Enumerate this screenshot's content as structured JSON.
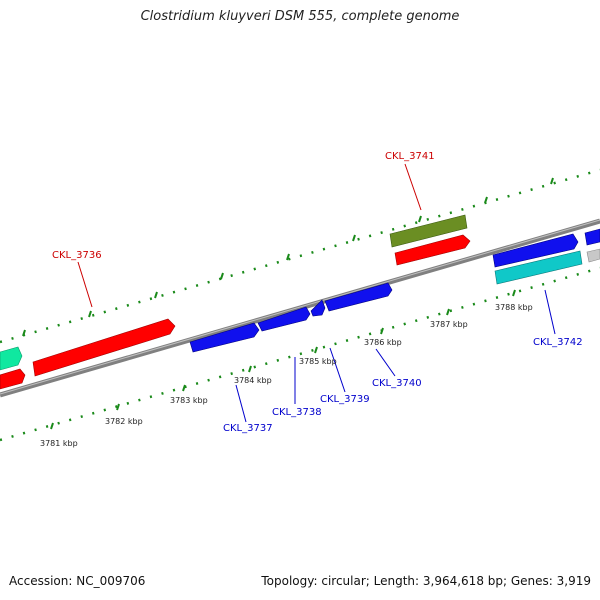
{
  "title": "Clostridium kluyveri DSM 555, complete genome",
  "footer": {
    "accession": "Accession: NC_009706",
    "summary": "Topology: circular; Length: 3,964,618 bp; Genes: 3,919"
  },
  "colors": {
    "backbone": "#808080",
    "ruler_ticks": "#1a8a1a",
    "label_red": "#cc0000",
    "label_blue": "#0000cc",
    "gene_red": "#ff0000",
    "gene_blue": "#1010ee",
    "gene_olive": "#6b8e23",
    "gene_cyan": "#10c8c8",
    "gene_teal": "#10e8a0",
    "gene_gray": "#c8c8c8"
  },
  "ruler_labels": [
    "3781 kbp",
    "3782 kbp",
    "3783 kbp",
    "3784 kbp",
    "3785 kbp",
    "3786 kbp",
    "3787 kbp",
    "3788 kbp"
  ],
  "gene_labels": {
    "g3736": "CKL_3736",
    "g3737": "CKL_3737",
    "g3738": "CKL_3738",
    "g3739": "CKL_3739",
    "g3740": "CKL_3740",
    "g3741": "CKL_3741",
    "g3742": "CKL_3742"
  }
}
